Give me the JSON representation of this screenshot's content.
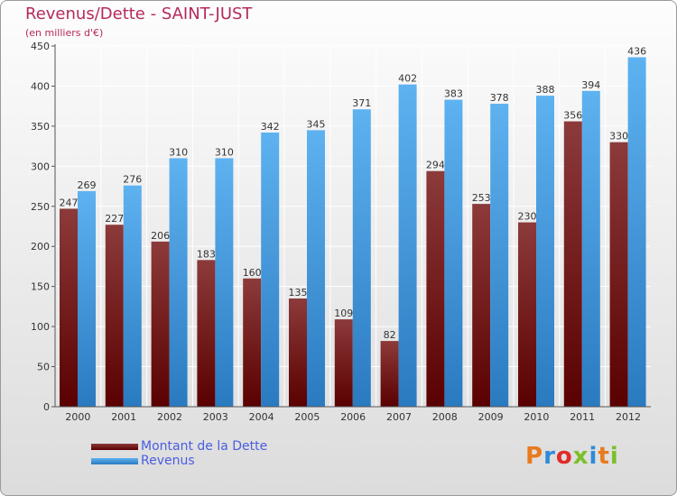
{
  "title": "Revenus/Dette - SAINT-JUST",
  "subtitle": "(en milliers d'€)",
  "logo": {
    "text": "Proxiti",
    "letter_colors": [
      "#e87b1e",
      "#2e8bd8",
      "#e02a2a",
      "#7bbf2a",
      "#2e8bd8",
      "#e87b1e",
      "#7bbf2a"
    ]
  },
  "colors": {
    "debt_top": "#8c3a3a",
    "debt_bottom": "#5a0000",
    "revenue_top": "#5eb2f0",
    "revenue_bottom": "#2a7ac0",
    "title": "#b5295d",
    "legend_text": "#4a5de0"
  },
  "chart_data": {
    "type": "bar",
    "title": "Revenus/Dette - SAINT-JUST",
    "subtitle": "(en milliers d'€)",
    "categories": [
      "2000",
      "2001",
      "2002",
      "2003",
      "2004",
      "2005",
      "2006",
      "2007",
      "2008",
      "2009",
      "2010",
      "2011",
      "2012"
    ],
    "series": [
      {
        "name": "Montant de la Dette",
        "values": [
          247,
          227,
          206,
          183,
          160,
          135,
          109,
          82,
          294,
          253,
          230,
          356,
          330
        ]
      },
      {
        "name": "Revenus",
        "values": [
          269,
          276,
          310,
          310,
          342,
          345,
          371,
          402,
          383,
          378,
          388,
          394,
          436
        ]
      }
    ],
    "yticks": [
      0,
      50,
      100,
      150,
      200,
      250,
      300,
      350,
      400,
      450
    ],
    "ylim": [
      0,
      450
    ],
    "grid": true,
    "legend_position": "bottom-left"
  }
}
